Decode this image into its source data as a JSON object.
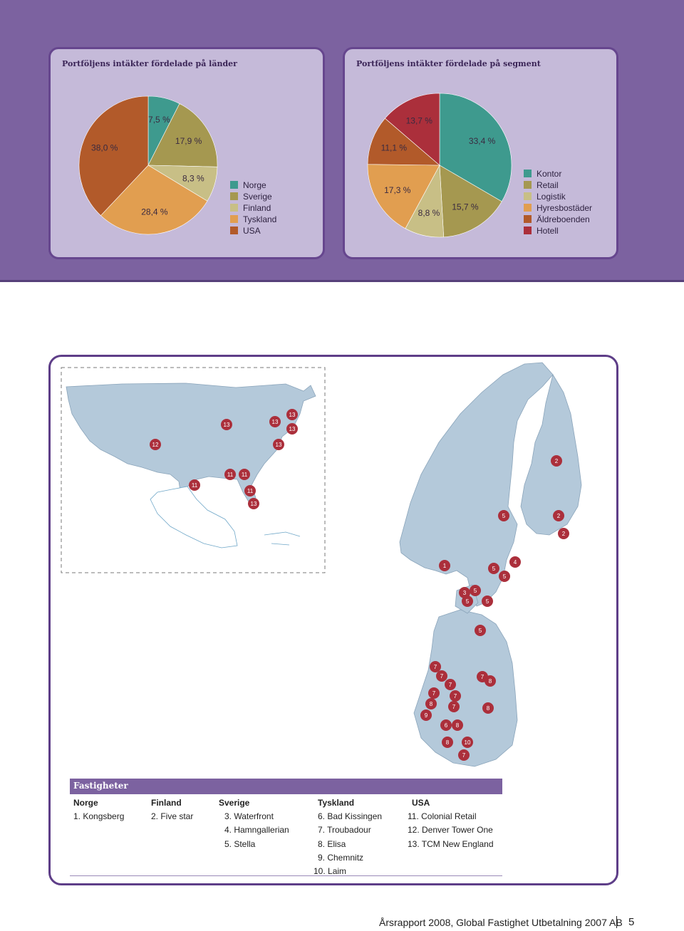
{
  "countries_chart": {
    "title": "Portföljens intäkter fördelade på länder",
    "colors": {
      "Norge": "#3e9a8e",
      "Sverige": "#a59850",
      "Finland": "#c8bf86",
      "Tyskland": "#e19e50",
      "USA": "#b25a2a"
    },
    "legend": [
      "Norge",
      "Sverige",
      "Finland",
      "Tyskland",
      "USA"
    ]
  },
  "segments_chart": {
    "title": "Portföljens intäkter fördelade på segment",
    "colors": {
      "Kontor": "#3e9a8e",
      "Retail": "#a59850",
      "Logistik": "#c8bf86",
      "Hyresbostäder": "#e19e50",
      "Äldreboenden": "#b25a2a",
      "Hotell": "#ab2f3b"
    },
    "legend": [
      "Kontor",
      "Retail",
      "Logistik",
      "Hyresbostäder",
      "Äldreboenden",
      "Hotell"
    ]
  },
  "chart_data": [
    {
      "type": "pie",
      "title": "Portföljens intäkter fördelade på länder",
      "labels": [
        "Norge",
        "Sverige",
        "Finland",
        "Tyskland",
        "USA"
      ],
      "values": [
        7.5,
        17.9,
        8.3,
        28.4,
        38.0
      ],
      "value_labels": [
        "7,5 %",
        "17,9 %",
        "8,3 %",
        "28,4 %",
        "38,0 %"
      ]
    },
    {
      "type": "pie",
      "title": "Portföljens intäkter fördelade på segment",
      "labels": [
        "Kontor",
        "Retail",
        "Logistik",
        "Hyresbostäder",
        "Äldreboenden",
        "Hotell"
      ],
      "values": [
        33.4,
        15.7,
        8.8,
        17.3,
        11.1,
        13.7
      ],
      "value_labels": [
        "33,4 %",
        "15,7 %",
        "8,8 %",
        "17,3 %",
        "11,1 %",
        "13,7 %"
      ]
    }
  ],
  "map_markers": [
    "13",
    "13",
    "13",
    "13",
    "12",
    "13",
    "11",
    "11",
    "11",
    "11",
    "13",
    "2",
    "5",
    "2",
    "2",
    "1",
    "5",
    "4",
    "5",
    "3",
    "5",
    "5",
    "5",
    "5",
    "7",
    "7",
    "7",
    "7",
    "8",
    "7",
    "7",
    "8",
    "7",
    "9",
    "8",
    "6",
    "8",
    "8",
    "10",
    "7"
  ],
  "fastigheter": {
    "title": "Fastigheter",
    "columns": [
      {
        "heading": "Norge",
        "items": [
          "1. Kongsberg"
        ]
      },
      {
        "heading": "Finland",
        "items": [
          "2. Five star"
        ]
      },
      {
        "heading": "Sverige",
        "items": [
          "3. Waterfront",
          "4. Hamngallerian",
          "5. Stella"
        ]
      },
      {
        "heading": "Tyskland",
        "items": [
          "6. Bad Kissingen",
          "7. Troubadour",
          "8. Elisa",
          "9. Chemnitz",
          "10. Laim"
        ]
      },
      {
        "heading": "USA",
        "items": [
          "11. Colonial Retail",
          "12. Denver Tower One",
          "13. TCM New England"
        ]
      }
    ]
  },
  "footer": {
    "text": "Årsrapport 2008, Global Fastighet Utbetalning 2007 AB",
    "page": "5"
  }
}
